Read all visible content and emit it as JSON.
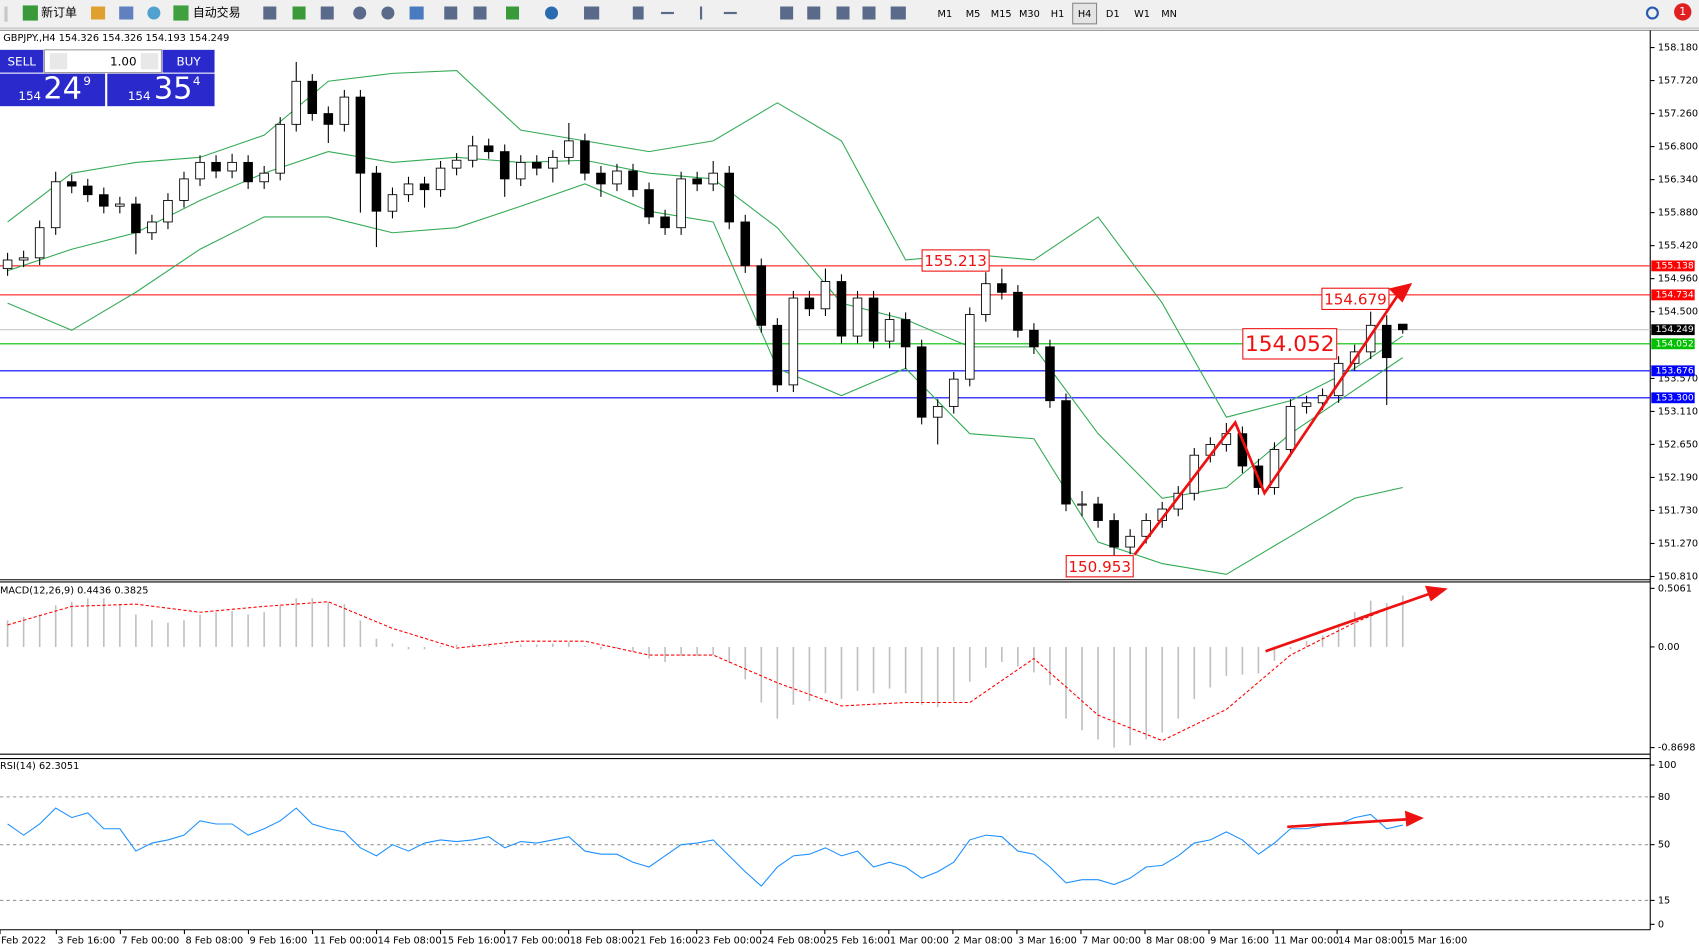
{
  "toolbar": {
    "buttons": [
      "新订单",
      "自动交易"
    ],
    "timeframes": [
      "M1",
      "M5",
      "M15",
      "M30",
      "H1",
      "H4",
      "D1",
      "W1",
      "MN"
    ],
    "selected": "H4",
    "notification": "1"
  },
  "trade_panel": {
    "sell": "SELL",
    "buy": "BUY",
    "volume": "1.00",
    "bid": {
      "big": "154",
      "main": "24",
      "small": "9"
    },
    "ask": {
      "big": "154",
      "main": "35",
      "small": "4"
    }
  },
  "chart_data": [
    {
      "type": "candlestick",
      "title": "GBPJPY.,H4 154.326 154.326 154.193 154.249",
      "candle_color": "#000000",
      "up_fill": "#ffffff",
      "down_fill": "#000000",
      "open": [
        155.1,
        155.22,
        155.25,
        155.67,
        156.31,
        156.25,
        156.13,
        155.97,
        156.0,
        155.6,
        155.75,
        156.05,
        156.35,
        156.58,
        156.46,
        156.58,
        156.31,
        156.43,
        157.11,
        157.71,
        157.26,
        157.11,
        157.49,
        156.43,
        155.9,
        156.13,
        156.28,
        156.2,
        156.5,
        156.61,
        156.81,
        156.73,
        156.35,
        156.58,
        156.5,
        156.65,
        156.88,
        156.43,
        156.28,
        156.46,
        156.2,
        155.82,
        155.67,
        156.35,
        156.28,
        156.43,
        155.75,
        155.14,
        154.31,
        153.48,
        154.69,
        154.54,
        154.92,
        154.16,
        154.69,
        154.09,
        154.39,
        154.01,
        153.03,
        153.18,
        153.56,
        154.46,
        154.89,
        154.77,
        154.24,
        154.01,
        153.26,
        151.82,
        151.82,
        151.59,
        151.22,
        151.37,
        151.59,
        151.75,
        151.97,
        152.5,
        152.65,
        152.8,
        152.35,
        152.05,
        152.58,
        153.18,
        153.23,
        153.33,
        153.78,
        153.94,
        154.31,
        154.326
      ],
      "high": [
        155.32,
        155.35,
        155.77,
        156.45,
        156.41,
        156.35,
        156.23,
        156.1,
        156.1,
        155.85,
        156.15,
        156.45,
        156.68,
        156.68,
        156.7,
        156.68,
        156.53,
        157.21,
        157.98,
        157.81,
        157.36,
        157.59,
        157.59,
        156.53,
        156.23,
        156.38,
        156.38,
        156.6,
        156.71,
        156.95,
        156.91,
        156.83,
        156.68,
        156.68,
        156.75,
        157.13,
        156.98,
        156.53,
        156.56,
        156.56,
        156.3,
        155.92,
        156.45,
        156.45,
        156.6,
        156.53,
        155.85,
        155.24,
        154.41,
        154.79,
        154.79,
        155.1,
        155.02,
        154.79,
        154.79,
        154.49,
        154.49,
        154.11,
        153.28,
        153.66,
        154.56,
        155.05,
        155.1,
        154.87,
        154.34,
        154.11,
        153.36,
        152.0,
        151.92,
        151.69,
        151.47,
        151.69,
        151.85,
        152.07,
        152.6,
        152.75,
        152.95,
        152.9,
        152.45,
        152.68,
        153.28,
        153.33,
        153.43,
        153.88,
        154.04,
        154.5,
        154.45,
        154.326
      ],
      "low": [
        155.0,
        155.12,
        155.15,
        155.57,
        156.15,
        156.03,
        155.87,
        155.87,
        155.3,
        155.5,
        155.65,
        155.95,
        156.25,
        156.36,
        156.36,
        156.21,
        156.21,
        156.33,
        157.01,
        157.16,
        156.85,
        157.01,
        155.88,
        155.4,
        155.8,
        156.03,
        155.95,
        156.1,
        156.4,
        156.51,
        156.63,
        156.1,
        156.25,
        156.4,
        156.3,
        156.55,
        156.33,
        156.1,
        156.18,
        156.1,
        155.72,
        155.57,
        155.57,
        156.18,
        156.18,
        155.65,
        155.04,
        154.21,
        153.38,
        153.38,
        154.44,
        154.44,
        154.06,
        154.06,
        153.99,
        153.99,
        153.7,
        152.93,
        152.65,
        153.08,
        153.46,
        154.36,
        154.67,
        154.14,
        153.91,
        153.16,
        151.72,
        151.65,
        151.49,
        150.953,
        151.12,
        151.27,
        151.49,
        151.65,
        151.87,
        152.4,
        152.55,
        152.25,
        151.95,
        151.95,
        152.48,
        153.08,
        153.13,
        153.23,
        153.68,
        153.84,
        153.2,
        154.193
      ],
      "close": [
        155.22,
        155.25,
        155.67,
        156.31,
        156.25,
        156.13,
        155.97,
        156.0,
        155.6,
        155.75,
        156.05,
        156.35,
        156.58,
        156.46,
        156.58,
        156.31,
        156.43,
        157.11,
        157.71,
        157.26,
        157.11,
        157.49,
        156.43,
        155.9,
        156.13,
        156.28,
        156.2,
        156.5,
        156.61,
        156.81,
        156.73,
        156.35,
        156.58,
        156.5,
        156.65,
        156.88,
        156.43,
        156.28,
        156.46,
        156.2,
        155.82,
        155.67,
        156.35,
        156.28,
        156.43,
        155.75,
        155.14,
        154.31,
        153.48,
        154.69,
        154.54,
        154.92,
        154.16,
        154.69,
        154.09,
        154.39,
        154.01,
        153.03,
        153.18,
        153.56,
        154.46,
        154.89,
        154.77,
        154.24,
        154.01,
        153.26,
        151.82,
        151.82,
        151.59,
        151.22,
        151.37,
        151.59,
        151.75,
        151.97,
        152.5,
        152.65,
        152.8,
        152.35,
        152.05,
        152.58,
        153.18,
        153.23,
        153.33,
        153.78,
        153.94,
        154.31,
        153.86,
        154.249
      ],
      "bollinger": {
        "color": "#33aa55",
        "x": [
          0,
          4,
          8,
          12,
          16,
          20,
          24,
          28,
          32,
          36,
          40,
          44,
          48,
          52,
          56,
          60,
          64,
          68,
          72,
          76,
          80,
          84,
          87
        ],
        "upper": [
          155.75,
          156.43,
          156.58,
          156.65,
          156.96,
          157.71,
          157.82,
          157.86,
          157.03,
          156.88,
          156.73,
          156.88,
          157.41,
          156.88,
          155.22,
          155.3,
          155.22,
          155.82,
          154.62,
          153.03,
          153.26,
          153.71,
          154.16
        ],
        "middle": [
          155.07,
          155.37,
          155.6,
          156.05,
          156.43,
          156.73,
          156.58,
          156.65,
          156.58,
          156.61,
          156.43,
          156.35,
          155.67,
          154.62,
          154.39,
          154.01,
          154.01,
          152.8,
          151.9,
          152.05,
          152.8,
          153.41,
          153.86
        ],
        "lower": [
          154.62,
          154.24,
          154.77,
          155.37,
          155.82,
          155.82,
          155.6,
          155.67,
          155.97,
          156.28,
          155.9,
          155.75,
          153.71,
          153.33,
          153.71,
          152.8,
          152.73,
          151.29,
          150.99,
          150.84,
          151.37,
          151.9,
          152.05
        ]
      },
      "ylim": [
        150.765,
        158.42
      ],
      "yticks": [
        {
          "value": 158.18,
          "label": "158.180"
        },
        {
          "value": 157.72,
          "label": "157.720"
        },
        {
          "value": 157.26,
          "label": "157.260"
        },
        {
          "value": 156.8,
          "label": "156.800"
        },
        {
          "value": 156.34,
          "label": "156.340"
        },
        {
          "value": 155.88,
          "label": "155.880"
        },
        {
          "value": 155.42,
          "label": "155.420"
        },
        {
          "value": 154.96,
          "label": "154.960"
        },
        {
          "value": 154.5,
          "label": "154.500"
        },
        {
          "value": 153.57,
          "label": "153.570"
        },
        {
          "value": 153.11,
          "label": "153.110"
        },
        {
          "value": 152.65,
          "label": "152.650"
        },
        {
          "value": 152.19,
          "label": "152.190"
        },
        {
          "value": 151.73,
          "label": "151.730"
        },
        {
          "value": 151.27,
          "label": "151.270"
        },
        {
          "value": 150.81,
          "label": "150.810"
        }
      ],
      "levels": [
        {
          "value": 155.138,
          "color": "#ff0000"
        },
        {
          "value": 154.734,
          "color": "#ff0000"
        },
        {
          "value": 154.249,
          "color": "#000000",
          "line": "#c8c8c8"
        },
        {
          "value": 154.052,
          "color": "#00c000"
        },
        {
          "value": 153.676,
          "color": "#0000ff"
        },
        {
          "value": 153.3,
          "label": "153.300",
          "color": "#0000ff"
        }
      ],
      "annotations": [
        155.213,
        154.679,
        154.052,
        150.953
      ],
      "x_labels": [
        "Feb 2022",
        "3 Feb 16:00",
        "7 Feb 00:00",
        "8 Feb 08:00",
        "9 Feb 16:00",
        "11 Feb 00:00",
        "14 Feb 08:00",
        "15 Feb 16:00",
        "17 Feb 00:00",
        "18 Feb 08:00",
        "21 Feb 16:00",
        "23 Feb 00:00",
        "24 Feb 08:00",
        "25 Feb 16:00",
        "1 Mar 00:00",
        "2 Mar 08:00",
        "3 Mar 16:00",
        "7 Mar 00:00",
        "8 Mar 08:00",
        "9 Mar 16:00",
        "11 Mar 00:00",
        "14 Mar 08:00",
        "15 Mar 16:00"
      ]
    },
    {
      "type": "macd",
      "title": "MACD(12,26,9) 0.4436 0.3825",
      "color": "#c0c0c0",
      "signal_color": "#ff0000",
      "histogram": [
        0.23,
        0.26,
        0.28,
        0.36,
        0.39,
        0.42,
        0.42,
        0.37,
        0.28,
        0.23,
        0.21,
        0.23,
        0.28,
        0.3,
        0.31,
        0.28,
        0.3,
        0.36,
        0.42,
        0.42,
        0.39,
        0.37,
        0.23,
        0.07,
        0.03,
        -0.02,
        -0.02,
        0.01,
        0.02,
        0.03,
        0.03,
        0.01,
        0.02,
        0.02,
        0.03,
        0.04,
        0.01,
        -0.02,
        -0.01,
        -0.04,
        -0.1,
        -0.13,
        -0.08,
        -0.08,
        -0.07,
        -0.14,
        -0.28,
        -0.48,
        -0.62,
        -0.5,
        -0.47,
        -0.4,
        -0.45,
        -0.38,
        -0.4,
        -0.36,
        -0.4,
        -0.5,
        -0.52,
        -0.47,
        -0.3,
        -0.18,
        -0.13,
        -0.17,
        -0.22,
        -0.33,
        -0.62,
        -0.72,
        -0.8,
        -0.87,
        -0.85,
        -0.8,
        -0.74,
        -0.62,
        -0.45,
        -0.35,
        -0.25,
        -0.24,
        -0.23,
        -0.12,
        -0.02,
        0.05,
        0.1,
        0.2,
        0.3,
        0.4,
        0.38,
        0.4436
      ],
      "signal": {
        "x": [
          0,
          4,
          8,
          12,
          16,
          20,
          24,
          28,
          32,
          36,
          40,
          44,
          48,
          52,
          56,
          60,
          64,
          68,
          72,
          76,
          80,
          84,
          87
        ],
        "values": [
          0.19,
          0.35,
          0.37,
          0.3,
          0.35,
          0.39,
          0.16,
          -0.01,
          0.05,
          0.05,
          -0.07,
          -0.07,
          -0.31,
          -0.51,
          -0.48,
          -0.48,
          -0.1,
          -0.59,
          -0.81,
          -0.54,
          -0.07,
          0.21,
          0.3825
        ]
      },
      "ylim": [
        -0.927,
        0.5618
      ],
      "yticks": [
        0.5061,
        {
          "value": 0,
          "label": "0.00"
        },
        -0.8698
      ]
    },
    {
      "type": "rsi",
      "title": "RSI(14) 62.3051",
      "color": "#1e90ff",
      "values": [
        63,
        56,
        63,
        73,
        67,
        70,
        60,
        60,
        46,
        51,
        53,
        56,
        65,
        63,
        63,
        56,
        60,
        65,
        73,
        63,
        60,
        58,
        48,
        43,
        50,
        46,
        51,
        53,
        52,
        53,
        55,
        48,
        52,
        51,
        53,
        55,
        46,
        44,
        44,
        39,
        36,
        43,
        50,
        51,
        53,
        43,
        33,
        24,
        36,
        43,
        44,
        48,
        43,
        46,
        36,
        39,
        36,
        29,
        33,
        39,
        53,
        56,
        55,
        46,
        44,
        36,
        26,
        28,
        28,
        25,
        29,
        36,
        37,
        43,
        51,
        53,
        58,
        53,
        44,
        51,
        60,
        60,
        62,
        63,
        67,
        69,
        60,
        62.3051
      ],
      "ylim": [
        0,
        100
      ],
      "yticks": [
        100,
        80,
        50,
        15,
        0
      ],
      "levels": [
        80,
        50,
        15
      ]
    }
  ]
}
